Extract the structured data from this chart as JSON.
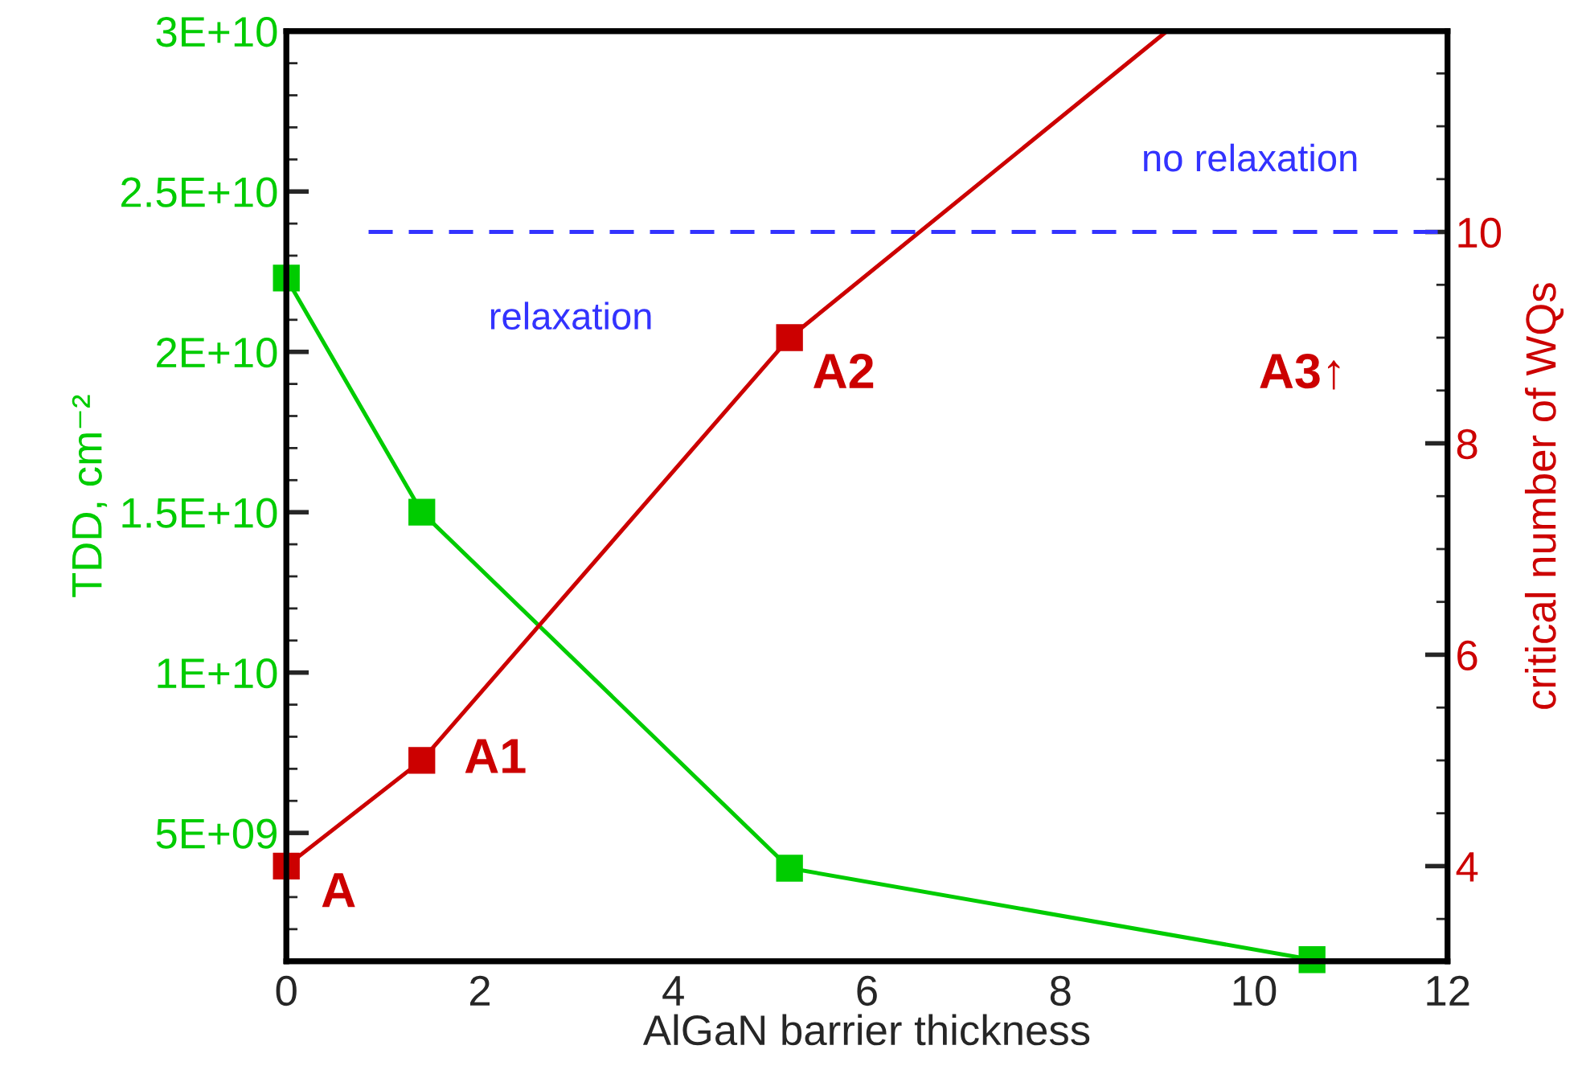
{
  "chart_data": {
    "type": "line",
    "xlabel": "AlGaN barrier thickness",
    "ylabel": "TDD, cm⁻²",
    "y2label": "critical number of WQs",
    "xlim": [
      0,
      12
    ],
    "xticks": [
      0,
      2,
      4,
      6,
      8,
      10,
      12
    ],
    "ylim": [
      1000000000,
      30000000000
    ],
    "yticks": [
      {
        "value": 5000000000,
        "label": "5E+09"
      },
      {
        "value": 10000000000,
        "label": "1E+10"
      },
      {
        "value": 15000000000,
        "label": "1.5E+10"
      },
      {
        "value": 20000000000,
        "label": "2E+10"
      },
      {
        "value": 25000000000,
        "label": "2.5E+10"
      },
      {
        "value": 30000000000,
        "label": "3E+10"
      }
    ],
    "y2lim": [
      3.1,
      11.9
    ],
    "y2ticks": [
      4,
      6,
      8,
      10
    ],
    "marker": "square",
    "line_style": "solid",
    "grid": false,
    "series": [
      {
        "color": "#00cc00",
        "x": [
          0,
          1.4,
          5.2,
          10.6
        ],
        "values": [
          22300000000,
          15000000000,
          3900000000,
          1050000000
        ]
      },
      {
        "color": "#cc0000",
        "axis": "y2",
        "x": [
          0,
          1.4,
          5.2
        ],
        "values": [
          4.0,
          5.0,
          9.0
        ]
      },
      {
        "color": "#cc0000",
        "axis": "y2",
        "marker": "none",
        "x": [
          5.2,
          9.1
        ],
        "values": [
          9.0,
          11.9
        ]
      },
      {
        "color": "#3333ff",
        "axis": "y2",
        "marker": "none",
        "line_style": "dashed",
        "x": [
          0.85,
          12
        ],
        "values": [
          10,
          10
        ]
      }
    ],
    "annotations": [
      "no relaxation",
      "relaxation",
      "A3↑",
      "A",
      "A1",
      "A2"
    ]
  }
}
